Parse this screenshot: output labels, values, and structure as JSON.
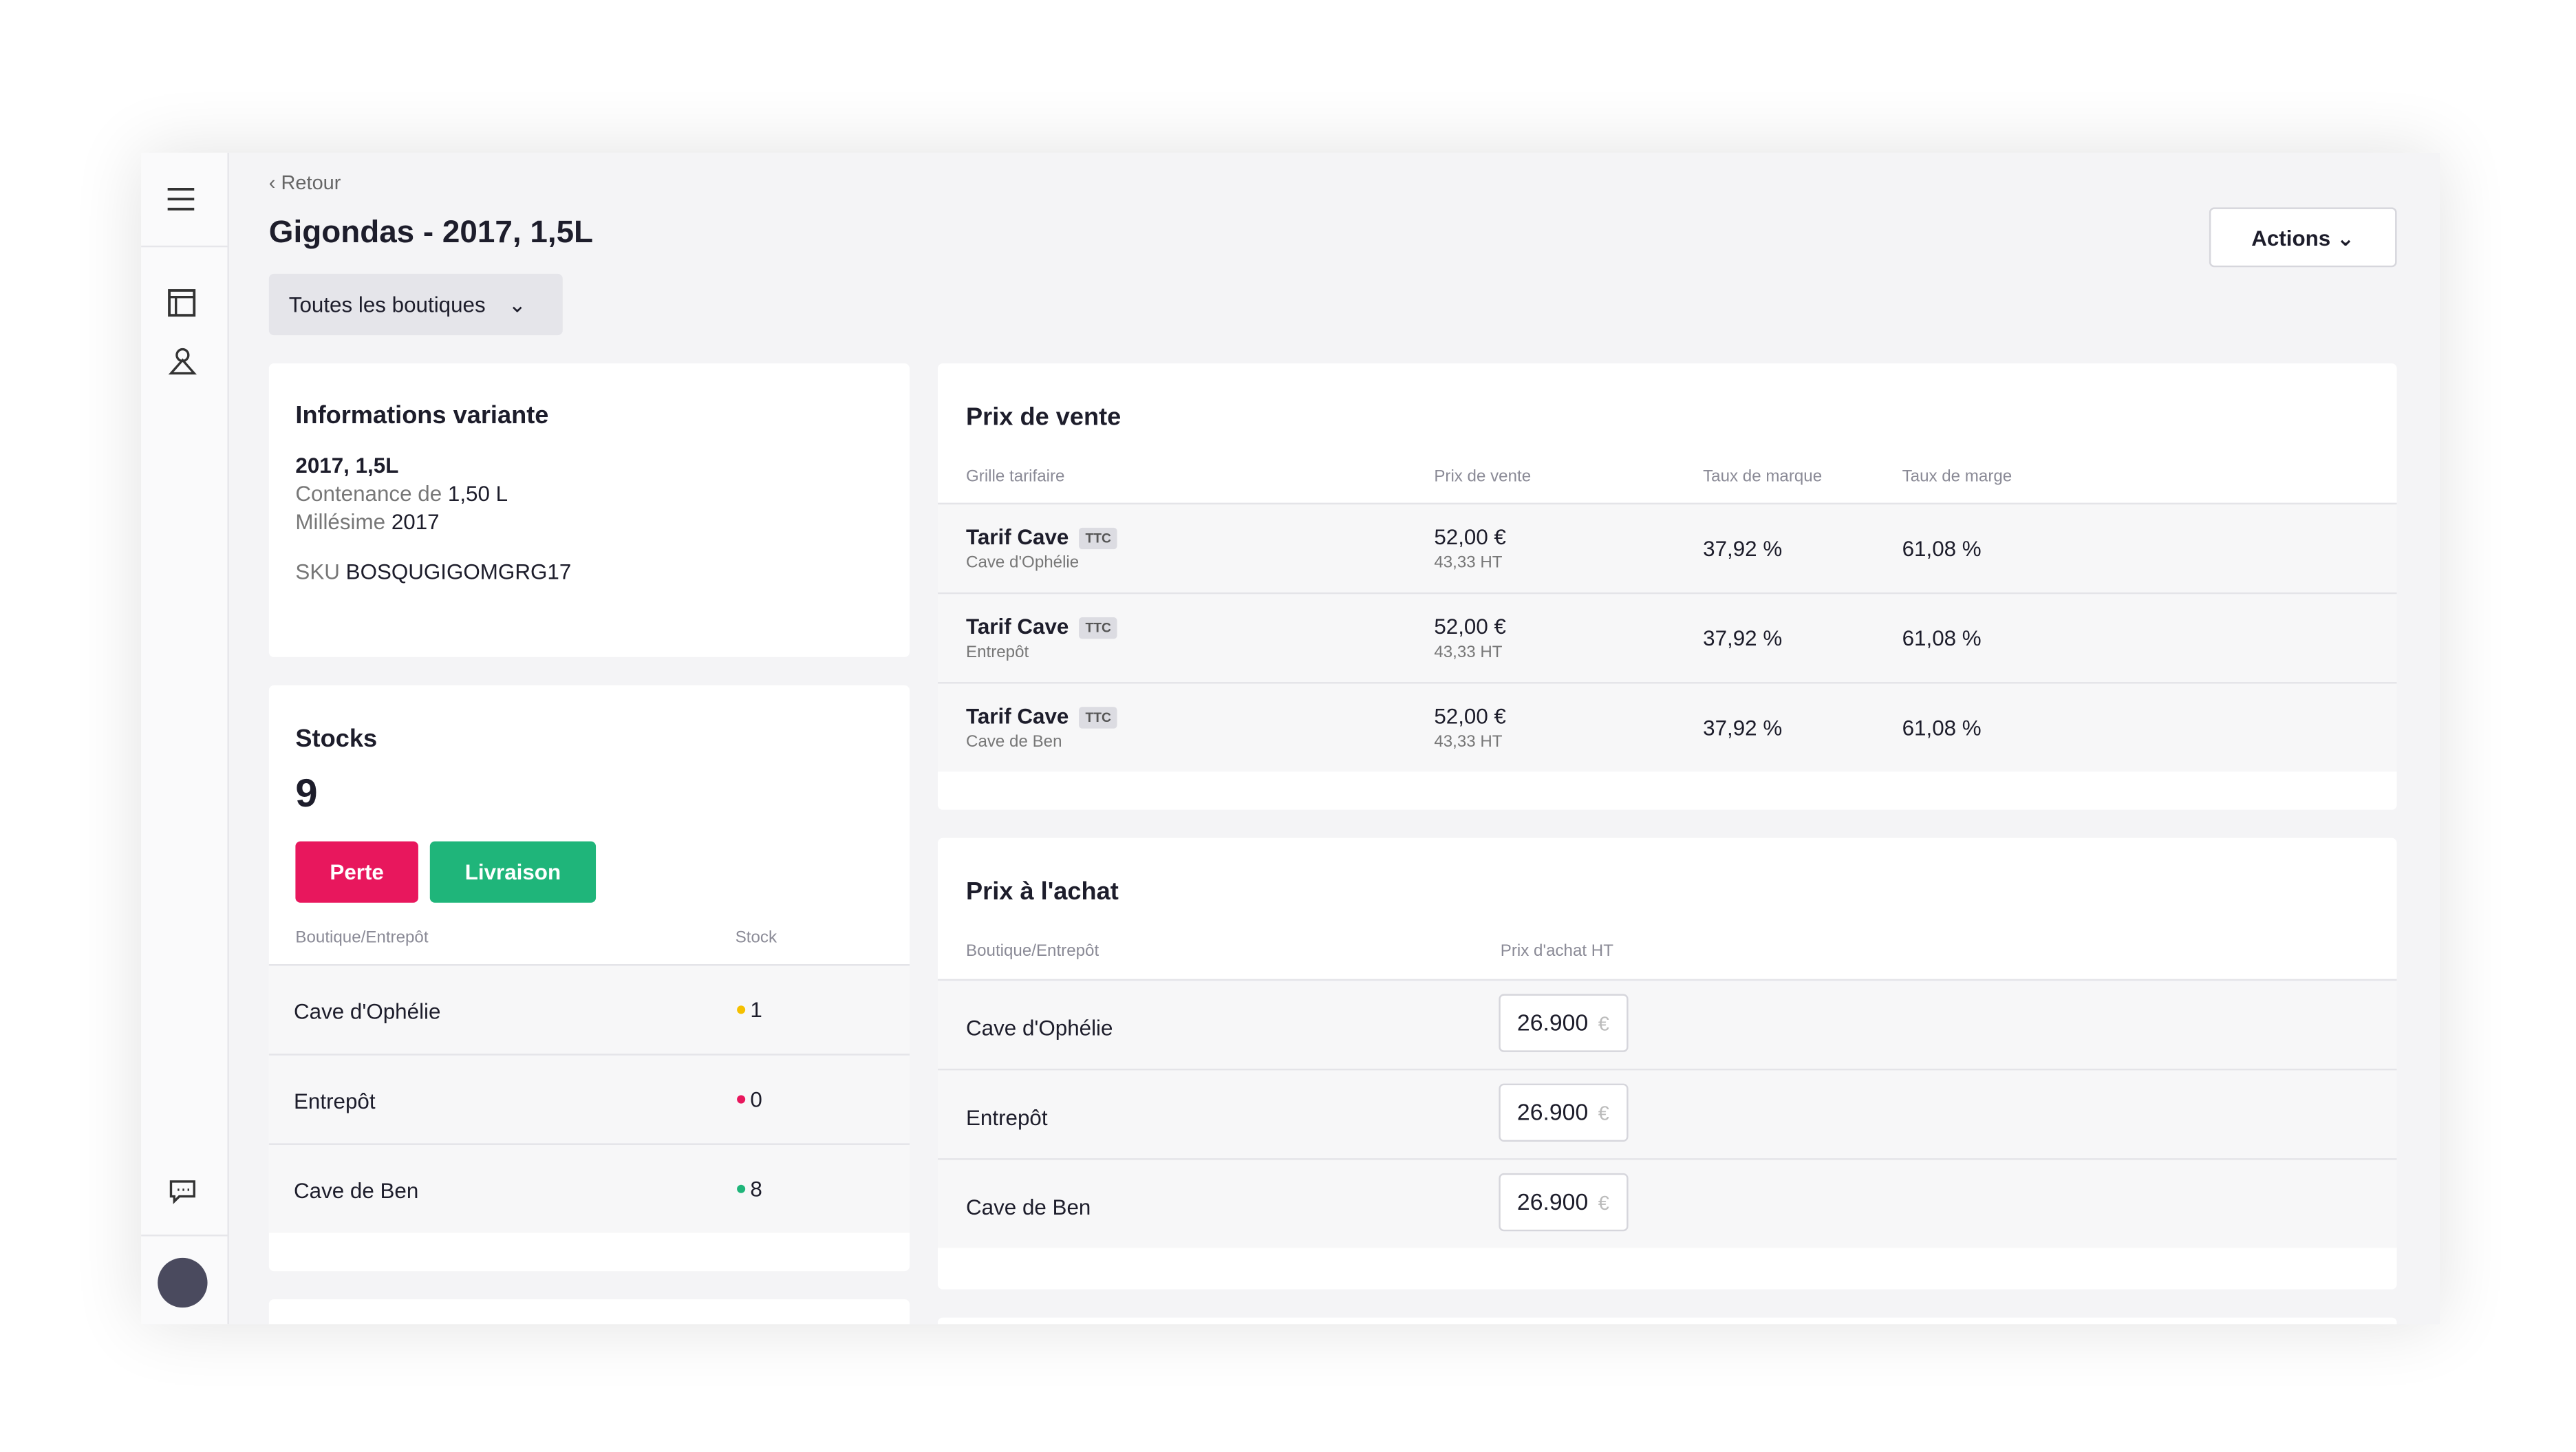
{
  "header": {
    "back": "Retour",
    "title": "Gigondas - 2017, 1,5L",
    "store_filter": "Toutes les boutiques",
    "actions": "Actions"
  },
  "variant": {
    "title": "Informations variante",
    "name": "2017, 1,5L",
    "capacity_label": "Contenance de",
    "capacity": "1,50 L",
    "vintage_label": "Millésime",
    "vintage": "2017",
    "sku_label": "SKU",
    "sku": "BOSQUGIGOMGRG17"
  },
  "stocks": {
    "title": "Stocks",
    "total": "9",
    "loss_button": "Perte",
    "delivery_button": "Livraison",
    "columns": [
      "Boutique/Entrepôt",
      "Stock"
    ],
    "rows": [
      {
        "location": "Cave d'Ophélie",
        "stock": "1",
        "status_color": "#f5c000"
      },
      {
        "location": "Entrepôt",
        "stock": "0",
        "status_color": "#e8175d"
      },
      {
        "location": "Cave de Ben",
        "stock": "8",
        "status_color": "#1fb57a"
      }
    ]
  },
  "sale_prices": {
    "title": "Prix de vente",
    "columns": [
      "Grille tarifaire",
      "Prix de vente",
      "Taux de marque",
      "Taux de marge"
    ],
    "rows": [
      {
        "grid": "Tarif Cave",
        "badge": "TTC",
        "store": "Cave d'Ophélie",
        "price": "52,00 €",
        "price_ht": "43,33 HT",
        "brand_rate": "37,92 %",
        "margin_rate": "61,08 %"
      },
      {
        "grid": "Tarif Cave",
        "badge": "TTC",
        "store": "Entrepôt",
        "price": "52,00 €",
        "price_ht": "43,33 HT",
        "brand_rate": "37,92 %",
        "margin_rate": "61,08 %"
      },
      {
        "grid": "Tarif Cave",
        "badge": "TTC",
        "store": "Cave de Ben",
        "price": "52,00 €",
        "price_ht": "43,33 HT",
        "brand_rate": "37,92 %",
        "margin_rate": "61,08 %"
      }
    ]
  },
  "purchase_prices": {
    "title": "Prix à l'achat",
    "columns": [
      "Boutique/Entrepôt",
      "Prix d'achat HT"
    ],
    "rows": [
      {
        "location": "Cave d'Ophélie",
        "price": "26.900",
        "currency": "€"
      },
      {
        "location": "Entrepôt",
        "price": "26.900",
        "currency": "€"
      },
      {
        "location": "Cave de Ben",
        "price": "26.900",
        "currency": "€"
      }
    ]
  }
}
